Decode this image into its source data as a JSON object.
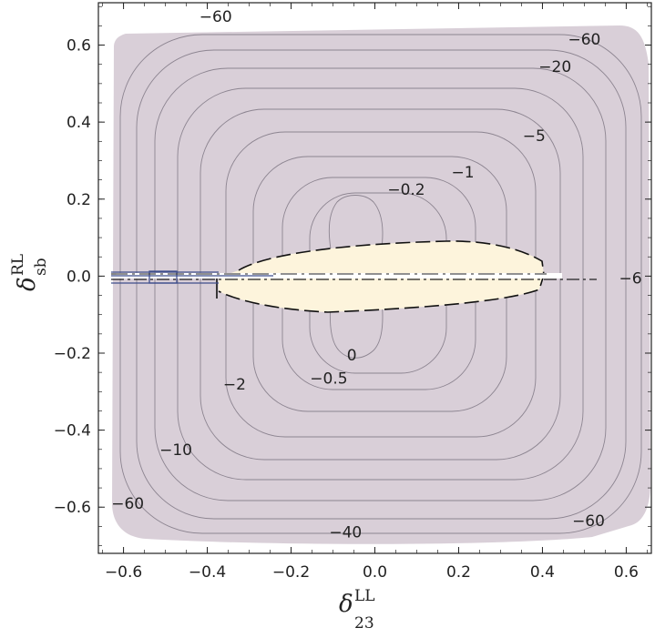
{
  "chart_data": {
    "type": "contour",
    "xlabel": {
      "symbol": "δ",
      "sup": "LL",
      "sub": "23"
    },
    "ylabel": {
      "symbol": "δ",
      "sup": "RL",
      "sub": "sb"
    },
    "xlim": [
      -0.66,
      0.66
    ],
    "ylim": [
      -0.72,
      0.71
    ],
    "xticks": [
      {
        "value": -0.6,
        "label": "−0.6"
      },
      {
        "value": -0.4,
        "label": "−0.4"
      },
      {
        "value": -0.2,
        "label": "−0.2"
      },
      {
        "value": 0.0,
        "label": "0.0"
      },
      {
        "value": 0.2,
        "label": "0.2"
      },
      {
        "value": 0.4,
        "label": "0.4"
      },
      {
        "value": 0.6,
        "label": "0.6"
      }
    ],
    "yticks": [
      {
        "value": 0.6,
        "label": "0.6"
      },
      {
        "value": 0.4,
        "label": "0.4"
      },
      {
        "value": 0.2,
        "label": "0.2"
      },
      {
        "value": 0.0,
        "label": "0.0"
      },
      {
        "value": -0.2,
        "label": "−0.2"
      },
      {
        "value": -0.4,
        "label": "−0.4"
      },
      {
        "value": -0.6,
        "label": "−0.6"
      }
    ],
    "contour_labels": [
      {
        "text": "−60",
        "x": -0.38,
        "y": 0.675
      },
      {
        "text": "−60",
        "x": 0.5,
        "y": 0.615
      },
      {
        "text": "−20",
        "x": 0.43,
        "y": 0.545
      },
      {
        "text": "−5",
        "x": 0.38,
        "y": 0.365
      },
      {
        "text": "−1",
        "x": 0.21,
        "y": 0.27
      },
      {
        "text": "−0.2",
        "x": 0.075,
        "y": 0.225
      },
      {
        "text": "−6",
        "x": 0.61,
        "y": -0.005
      },
      {
        "text": "0",
        "x": -0.055,
        "y": -0.205
      },
      {
        "text": "−0.5",
        "x": -0.11,
        "y": -0.265
      },
      {
        "text": "−2",
        "x": -0.335,
        "y": -0.28
      },
      {
        "text": "−10",
        "x": -0.475,
        "y": -0.45
      },
      {
        "text": "−60",
        "x": -0.59,
        "y": -0.59
      },
      {
        "text": "−60",
        "x": 0.51,
        "y": -0.635
      },
      {
        "text": "−40",
        "x": -0.07,
        "y": -0.665
      }
    ],
    "colors": {
      "filled_region": "#d9cfd8",
      "positive_region": "#fdf4dc",
      "contour_line": "#8c8490",
      "boundary_line": "#111111",
      "blue_line": "#3e4d8c"
    }
  }
}
